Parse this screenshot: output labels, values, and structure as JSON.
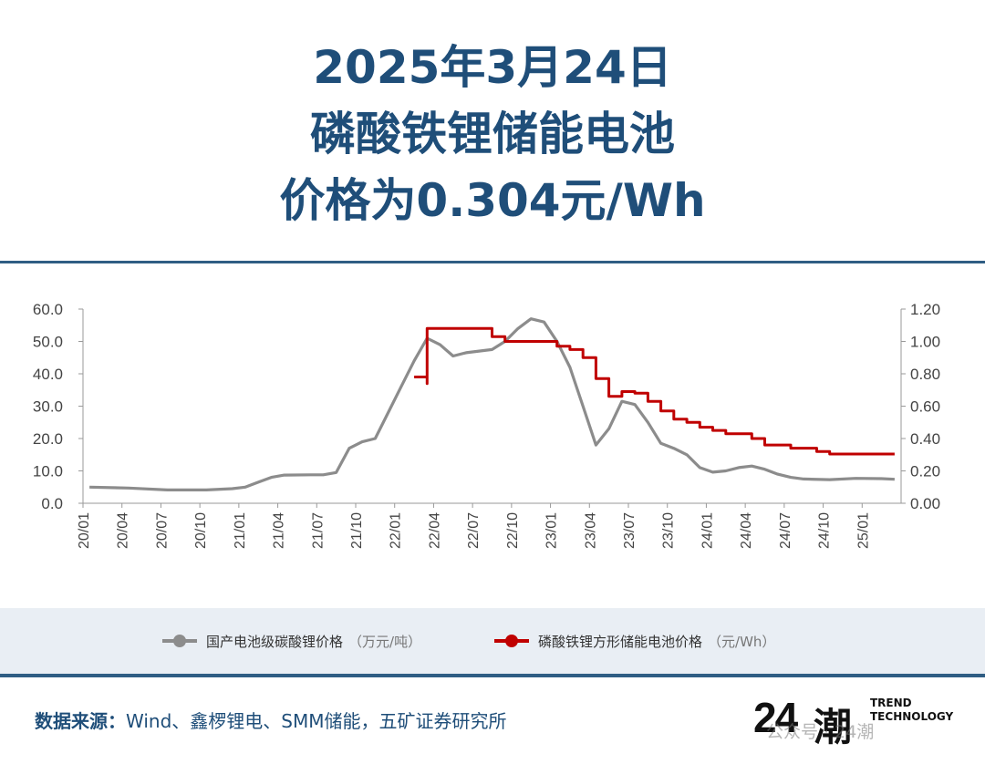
{
  "title": {
    "line1": "2025年3月24日",
    "line2": "磷酸铁锂储能电池",
    "line3": "价格为0.304元/Wh"
  },
  "colors": {
    "title": "#1f4e79",
    "rule": "#2f5d83",
    "series_gray": "#8c8c8c",
    "series_red": "#c00000",
    "legend_band": "#e9eef4"
  },
  "legend": {
    "gray_label": "国产电池级碳酸锂价格",
    "gray_unit": "（万元/吨）",
    "red_label": "磷酸铁锂方形储能电池价格",
    "red_unit": "（元/Wh）"
  },
  "source": {
    "label": "数据来源：",
    "text": "Wind、鑫椤锂电、SMM储能，五矿证券研究所"
  },
  "logo": {
    "number": "24",
    "chars": "潮",
    "en_line1": "TREND",
    "en_line2": "TECHNOLOGY"
  },
  "watermark": "公众号 · 24潮",
  "chart_data": {
    "type": "line",
    "left_axis": {
      "ylim": [
        0,
        60
      ],
      "ticks": [
        "0.0",
        "10.0",
        "20.0",
        "30.0",
        "40.0",
        "50.0",
        "60.0"
      ]
    },
    "right_axis": {
      "ylim": [
        0,
        1.2
      ],
      "ticks": [
        "0.00",
        "0.20",
        "0.40",
        "0.60",
        "0.80",
        "1.00",
        "1.20"
      ]
    },
    "x_ticks": [
      "20/01",
      "20/04",
      "20/07",
      "20/10",
      "21/01",
      "21/04",
      "21/07",
      "21/10",
      "22/01",
      "22/04",
      "22/07",
      "22/10",
      "23/01",
      "23/04",
      "23/07",
      "23/10",
      "24/01",
      "24/04",
      "24/07",
      "24/10",
      "25/01"
    ],
    "x_range_months": [
      0,
      63
    ],
    "series": [
      {
        "name": "国产电池级碳酸锂价格（万元/吨）",
        "axis": "left",
        "color": "#8c8c8c",
        "points": [
          [
            "2020-01",
            5.0
          ],
          [
            "2020-04",
            4.7
          ],
          [
            "2020-07",
            4.1
          ],
          [
            "2020-10",
            4.1
          ],
          [
            "2020-12",
            4.5
          ],
          [
            "2021-01",
            5.0
          ],
          [
            "2021-02",
            6.5
          ],
          [
            "2021-03",
            8.0
          ],
          [
            "2021-04",
            8.7
          ],
          [
            "2021-06",
            8.8
          ],
          [
            "2021-07",
            8.8
          ],
          [
            "2021-08",
            9.5
          ],
          [
            "2021-09",
            17.0
          ],
          [
            "2021-10",
            19.0
          ],
          [
            "2021-11",
            20.0
          ],
          [
            "2021-12",
            28.0
          ],
          [
            "2022-01",
            36.0
          ],
          [
            "2022-02",
            44.0
          ],
          [
            "2022-03",
            51.0
          ],
          [
            "2022-04",
            49.0
          ],
          [
            "2022-05",
            45.5
          ],
          [
            "2022-06",
            46.5
          ],
          [
            "2022-08",
            47.5
          ],
          [
            "2022-09",
            50.0
          ],
          [
            "2022-10",
            54.0
          ],
          [
            "2022-11",
            57.0
          ],
          [
            "2022-12",
            56.0
          ],
          [
            "2023-01",
            50.0
          ],
          [
            "2023-02",
            42.0
          ],
          [
            "2023-03",
            30.0
          ],
          [
            "2023-04",
            18.0
          ],
          [
            "2023-05",
            23.0
          ],
          [
            "2023-06",
            31.5
          ],
          [
            "2023-07",
            30.5
          ],
          [
            "2023-08",
            25.0
          ],
          [
            "2023-09",
            18.5
          ],
          [
            "2023-10",
            17.0
          ],
          [
            "2023-11",
            15.0
          ],
          [
            "2023-12",
            11.0
          ],
          [
            "2024-01",
            9.6
          ],
          [
            "2024-02",
            10.0
          ],
          [
            "2024-03",
            11.0
          ],
          [
            "2024-04",
            11.5
          ],
          [
            "2024-05",
            10.5
          ],
          [
            "2024-06",
            9.0
          ],
          [
            "2024-07",
            8.0
          ],
          [
            "2024-08",
            7.5
          ],
          [
            "2024-10",
            7.3
          ],
          [
            "2024-12",
            7.7
          ],
          [
            "2025-02",
            7.6
          ],
          [
            "2025-03",
            7.4
          ]
        ]
      },
      {
        "name": "磷酸铁锂方形储能电池价格（元/Wh）",
        "axis": "right",
        "color": "#c00000",
        "points": [
          [
            "2022-02",
            0.78
          ],
          [
            "2022-03",
            0.78
          ],
          [
            "2022-03",
            0.74
          ],
          [
            "2022-03",
            1.08
          ],
          [
            "2022-07",
            1.08
          ],
          [
            "2022-08",
            1.03
          ],
          [
            "2022-09",
            1.0
          ],
          [
            "2022-12",
            1.0
          ],
          [
            "2023-01",
            0.97
          ],
          [
            "2023-02",
            0.95
          ],
          [
            "2023-03",
            0.9
          ],
          [
            "2023-04",
            0.77
          ],
          [
            "2023-05",
            0.66
          ],
          [
            "2023-06",
            0.69
          ],
          [
            "2023-07",
            0.68
          ],
          [
            "2023-08",
            0.63
          ],
          [
            "2023-09",
            0.57
          ],
          [
            "2023-10",
            0.52
          ],
          [
            "2023-11",
            0.5
          ],
          [
            "2023-12",
            0.47
          ],
          [
            "2024-01",
            0.45
          ],
          [
            "2024-02",
            0.43
          ],
          [
            "2024-04",
            0.4
          ],
          [
            "2024-05",
            0.36
          ],
          [
            "2024-07",
            0.34
          ],
          [
            "2024-09",
            0.32
          ],
          [
            "2024-10",
            0.304
          ],
          [
            "2025-03",
            0.304
          ]
        ]
      }
    ]
  }
}
